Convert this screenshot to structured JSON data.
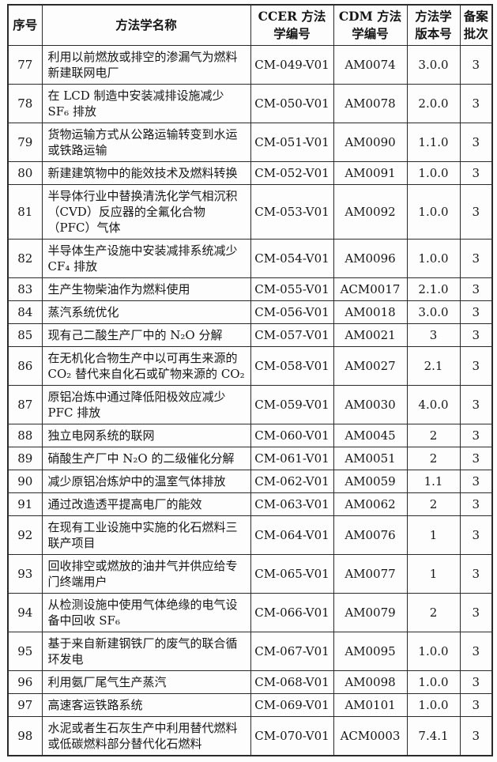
{
  "table": {
    "headers": {
      "col_index": "序号",
      "col_name": "方法学名称",
      "col_ccer": "CCER 方法\n学编号",
      "col_cdm": "CDM 方法\n学编号",
      "col_version": "方法学\n版本号",
      "col_batch": "备案\n批次"
    },
    "rows": [
      {
        "index": "77",
        "name": "利用以前燃放或排空的渗漏气为燃料新建联网电厂",
        "ccer": "CM-049-V01",
        "cdm": "AM0074",
        "version": "3.0.0",
        "batch": "3"
      },
      {
        "index": "78",
        "name": "在 LCD 制造中安装减排设施减少 SF₆ 排放",
        "ccer": "CM-050-V01",
        "cdm": "AM0078",
        "version": "2.0.0",
        "batch": "3"
      },
      {
        "index": "79",
        "name": "货物运输方式从公路运输转变到水运或铁路运输",
        "ccer": "CM-051-V01",
        "cdm": "AM0090",
        "version": "1.1.0",
        "batch": "3"
      },
      {
        "index": "80",
        "name": "新建建筑物中的能效技术及燃料转换",
        "ccer": "CM-052-V01",
        "cdm": "AM0091",
        "version": "1.0.0",
        "batch": "3"
      },
      {
        "index": "81",
        "name": "半导体行业中替换清洗化学气相沉积（CVD）反应器的全氟化合物（PFC）气体",
        "ccer": "CM-053-V01",
        "cdm": "AM0092",
        "version": "1.0.0",
        "batch": "3"
      },
      {
        "index": "82",
        "name": "半导体生产设施中安装减排系统减少 CF₄ 排放",
        "ccer": "CM-054-V01",
        "cdm": "AM0096",
        "version": "1.0.0",
        "batch": "3"
      },
      {
        "index": "83",
        "name": "生产生物柴油作为燃料使用",
        "ccer": "CM-055-V01",
        "cdm": "ACM0017",
        "version": "2.1.0",
        "batch": "3"
      },
      {
        "index": "84",
        "name": "蒸汽系统优化",
        "ccer": "CM-056-V01",
        "cdm": "AM0018",
        "version": "3.0.0",
        "batch": "3"
      },
      {
        "index": "85",
        "name": "现有己二酸生产厂中的 N₂O 分解",
        "ccer": "CM-057-V01",
        "cdm": "AM0021",
        "version": "3",
        "batch": "3"
      },
      {
        "index": "86",
        "name": "在无机化合物生产中以可再生来源的 CO₂ 替代来自化石或矿物来源的 CO₂",
        "ccer": "CM-058-V01",
        "cdm": "AM0027",
        "version": "2.1",
        "batch": "3"
      },
      {
        "index": "87",
        "name": "原铝冶炼中通过降低阳极效应减少 PFC 排放",
        "ccer": "CM-059-V01",
        "cdm": "AM0030",
        "version": "4.0.0",
        "batch": "3"
      },
      {
        "index": "88",
        "name": "独立电网系统的联网",
        "ccer": "CM-060-V01",
        "cdm": "AM0045",
        "version": "2",
        "batch": "3"
      },
      {
        "index": "89",
        "name": "硝酸生产厂中 N₂O 的二级催化分解",
        "ccer": "CM-061-V01",
        "cdm": "AM0051",
        "version": "2",
        "batch": "3"
      },
      {
        "index": "90",
        "name": "减少原铝冶炼炉中的温室气体排放",
        "ccer": "CM-062-V01",
        "cdm": "AM0059",
        "version": "1.1",
        "batch": "3"
      },
      {
        "index": "91",
        "name": "通过改造透平提高电厂的能效",
        "ccer": "CM-063-V01",
        "cdm": "AM0062",
        "version": "2",
        "batch": "3"
      },
      {
        "index": "92",
        "name": "在现有工业设施中实施的化石燃料三联产项目",
        "ccer": "CM-064-V01",
        "cdm": "AM0076",
        "version": "1",
        "batch": "3"
      },
      {
        "index": "93",
        "name": "回收排空或燃放的油井气并供应给专门终端用户",
        "ccer": "CM-065-V01",
        "cdm": "AM0077",
        "version": "1",
        "batch": "3"
      },
      {
        "index": "94",
        "name": "从检测设施中使用气体绝缘的电气设备中回收 SF₆",
        "ccer": "CM-066-V01",
        "cdm": "AM0079",
        "version": "2",
        "batch": "3"
      },
      {
        "index": "95",
        "name": "基于来自新建钢铁厂的废气的联合循环发电",
        "ccer": "CM-067-V01",
        "cdm": "AM0095",
        "version": "1.0.0",
        "batch": "3"
      },
      {
        "index": "96",
        "name": "利用氨厂尾气生产蒸汽",
        "ccer": "CM-068-V01",
        "cdm": "AM0098",
        "version": "1.0.0",
        "batch": "3"
      },
      {
        "index": "97",
        "name": "高速客运铁路系统",
        "ccer": "CM-069-V01",
        "cdm": "AM0101",
        "version": "1.0.0",
        "batch": "3"
      },
      {
        "index": "98",
        "name": "水泥或者生石灰生产中利用替代燃料或低碳燃料部分替代化石燃料",
        "ccer": "CM-070-V01",
        "cdm": "ACM0003",
        "version": "7.4.1",
        "batch": "3"
      }
    ]
  }
}
